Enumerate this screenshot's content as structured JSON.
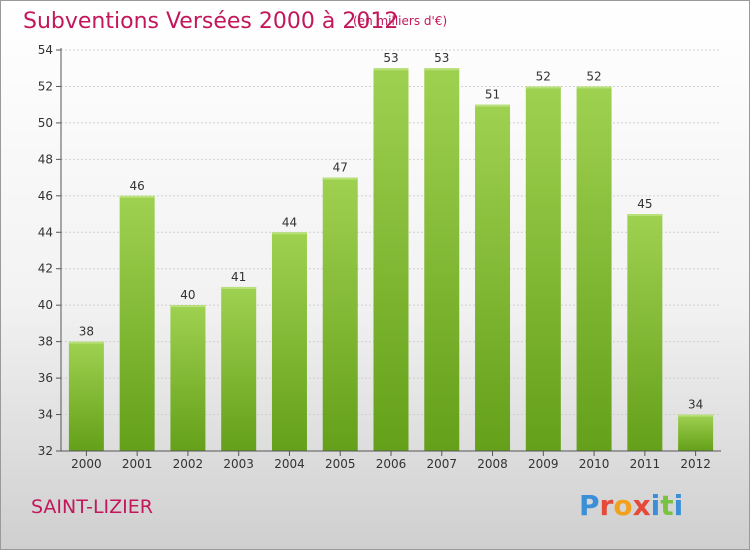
{
  "title": "Subventions Versées 2000 à 2012",
  "subtitle": "(en milliers d'€)",
  "commune": "SAINT-LIZIER",
  "logo": {
    "text": "Proxiti",
    "letter_colors": [
      "#3b8fd9",
      "#e5493a",
      "#f2a11c",
      "#e5493a",
      "#3b8fd9",
      "#7cc242",
      "#3b8fd9"
    ]
  },
  "colors": {
    "bar_top": "#9fd150",
    "bar_bottom": "#64a01a",
    "axis": "#555555",
    "grid": "#d0d0d0",
    "label": "#333333"
  },
  "chart_data": {
    "type": "bar",
    "title": "Subventions Versées 2000 à 2012",
    "subtitle": "(en milliers d'€)",
    "xlabel": "",
    "ylabel": "",
    "categories": [
      "2000",
      "2001",
      "2002",
      "2003",
      "2004",
      "2005",
      "2006",
      "2007",
      "2008",
      "2009",
      "2010",
      "2011",
      "2012"
    ],
    "values": [
      38,
      46,
      40,
      41,
      44,
      47,
      53,
      53,
      51,
      52,
      52,
      45,
      34
    ],
    "ylim": [
      32,
      54
    ],
    "yticks": [
      32,
      34,
      36,
      38,
      40,
      42,
      44,
      46,
      48,
      50,
      52,
      54
    ],
    "grid": true,
    "data_labels": true
  }
}
